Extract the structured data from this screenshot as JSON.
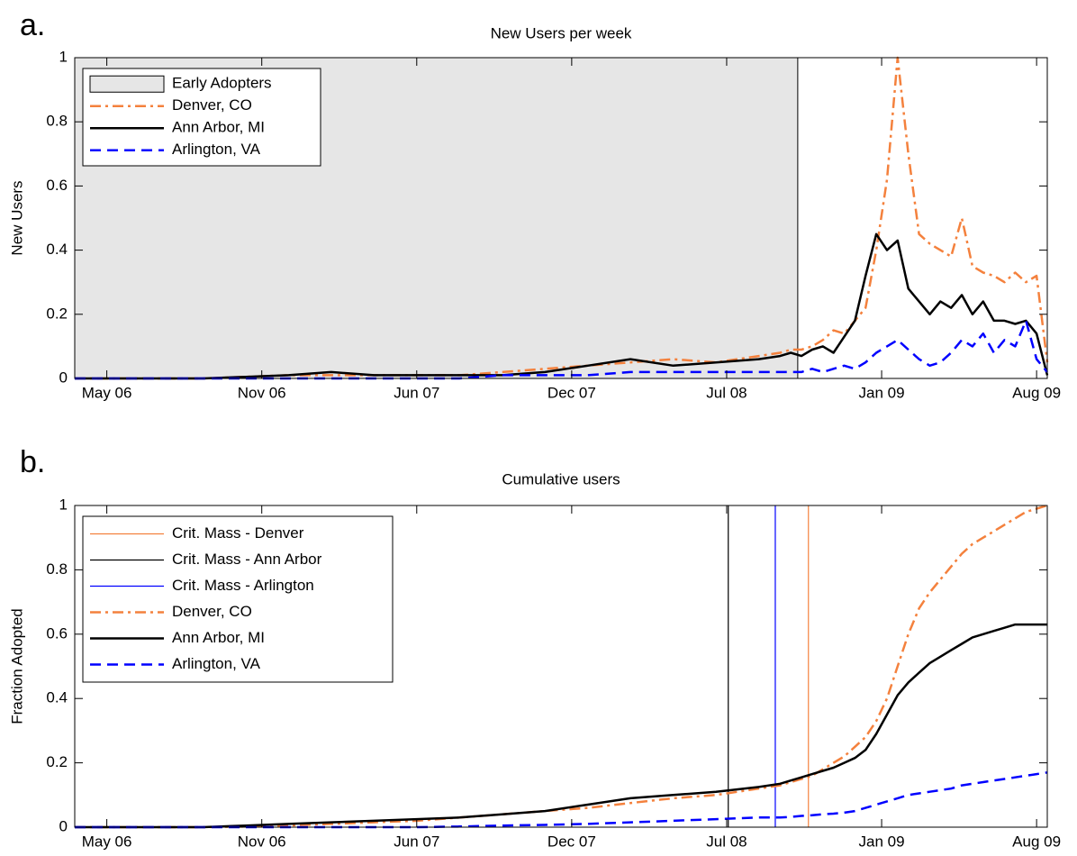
{
  "chart_data": [
    {
      "type": "line",
      "panel_label": "a.",
      "title": "New Users per week",
      "ylabel": "New Users",
      "xlim": [
        0,
        182
      ],
      "ylim": [
        0,
        1
      ],
      "xticks": [
        {
          "value": 6,
          "label": "May 06"
        },
        {
          "value": 35,
          "label": "Nov 06"
        },
        {
          "value": 64,
          "label": "Jun 07"
        },
        {
          "value": 93,
          "label": "Dec 07"
        },
        {
          "value": 122,
          "label": "Jul 08"
        },
        {
          "value": 151,
          "label": "Jan 09"
        },
        {
          "value": 180,
          "label": "Aug 09"
        }
      ],
      "yticks": [
        0,
        0.2,
        0.4,
        0.6,
        0.8,
        1
      ],
      "shaded": {
        "name": "Early Adopters",
        "color": "#e6e6e6",
        "x": [
          0,
          135.3
        ]
      },
      "x": [
        0,
        8,
        16,
        24,
        32,
        40,
        48,
        56,
        64,
        72,
        80,
        88,
        96,
        104,
        112,
        120,
        128,
        132,
        134,
        136,
        138,
        140,
        142,
        144,
        146,
        148,
        150,
        152,
        154,
        156,
        158,
        160,
        162,
        164,
        166,
        168,
        170,
        172,
        174,
        176,
        178,
        180,
        182
      ],
      "series": [
        {
          "name": "Denver, CO",
          "color": "#f4813d",
          "dash": "dash-dot",
          "values": [
            0,
            0,
            0,
            0,
            0.005,
            0.01,
            0.01,
            0.01,
            0.01,
            0.01,
            0.02,
            0.03,
            0.04,
            0.05,
            0.06,
            0.05,
            0.07,
            0.08,
            0.09,
            0.09,
            0.1,
            0.12,
            0.15,
            0.14,
            0.18,
            0.22,
            0.4,
            0.62,
            1.0,
            0.7,
            0.45,
            0.42,
            0.4,
            0.38,
            0.5,
            0.35,
            0.33,
            0.32,
            0.3,
            0.33,
            0.3,
            0.32,
            0.05
          ]
        },
        {
          "name": "Ann Arbor, MI",
          "color": "#000000",
          "dash": "solid",
          "values": [
            0,
            0,
            0,
            0,
            0.005,
            0.01,
            0.02,
            0.01,
            0.01,
            0.01,
            0.01,
            0.02,
            0.04,
            0.06,
            0.04,
            0.05,
            0.06,
            0.07,
            0.08,
            0.07,
            0.09,
            0.1,
            0.08,
            0.13,
            0.18,
            0.32,
            0.45,
            0.4,
            0.43,
            0.28,
            0.24,
            0.2,
            0.24,
            0.22,
            0.26,
            0.2,
            0.24,
            0.18,
            0.18,
            0.17,
            0.18,
            0.14,
            0.01
          ]
        },
        {
          "name": "Arlington, VA",
          "color": "#0000ff",
          "dash": "dashed",
          "values": [
            0,
            0,
            0,
            0,
            0,
            0,
            0,
            0,
            0,
            0,
            0.01,
            0.01,
            0.01,
            0.02,
            0.02,
            0.02,
            0.02,
            0.02,
            0.02,
            0.02,
            0.03,
            0.02,
            0.03,
            0.04,
            0.03,
            0.05,
            0.08,
            0.1,
            0.12,
            0.09,
            0.06,
            0.04,
            0.05,
            0.08,
            0.12,
            0.1,
            0.14,
            0.08,
            0.12,
            0.1,
            0.18,
            0.06,
            0.02
          ]
        }
      ]
    },
    {
      "type": "line",
      "panel_label": "b.",
      "title": "Cumulative users",
      "ylabel": "Fraction Adopted",
      "xlim": [
        0,
        182
      ],
      "ylim": [
        0,
        1
      ],
      "xticks": [
        {
          "value": 6,
          "label": "May 06"
        },
        {
          "value": 35,
          "label": "Nov 06"
        },
        {
          "value": 64,
          "label": "Jun 07"
        },
        {
          "value": 93,
          "label": "Dec 07"
        },
        {
          "value": 122,
          "label": "Jul 08"
        },
        {
          "value": 151,
          "label": "Jan 09"
        },
        {
          "value": 180,
          "label": "Aug 09"
        }
      ],
      "yticks": [
        0,
        0.2,
        0.4,
        0.6,
        0.8,
        1
      ],
      "vlines": [
        {
          "name": "Crit. Mass - Denver",
          "color": "#f4813d",
          "x": 137.3
        },
        {
          "name": "Crit. Mass - Ann Arbor",
          "color": "#000000",
          "x": 122.3
        },
        {
          "name": "Crit. Mass - Arlington",
          "color": "#0000ff",
          "x": 131.1
        }
      ],
      "x": [
        0,
        8,
        16,
        24,
        32,
        40,
        48,
        56,
        64,
        72,
        80,
        88,
        96,
        104,
        112,
        120,
        128,
        132,
        134,
        136,
        138,
        140,
        142,
        144,
        146,
        148,
        150,
        152,
        154,
        156,
        158,
        160,
        162,
        164,
        166,
        168,
        170,
        172,
        174,
        176,
        178,
        180,
        182
      ],
      "series": [
        {
          "name": "Denver, CO",
          "color": "#f4813d",
          "dash": "dash-dot",
          "values": [
            0,
            0,
            0,
            0,
            0.002,
            0.005,
            0.01,
            0.015,
            0.02,
            0.03,
            0.04,
            0.05,
            0.06,
            0.075,
            0.09,
            0.1,
            0.12,
            0.13,
            0.14,
            0.15,
            0.16,
            0.18,
            0.2,
            0.22,
            0.25,
            0.28,
            0.33,
            0.4,
            0.5,
            0.6,
            0.68,
            0.73,
            0.77,
            0.81,
            0.85,
            0.88,
            0.9,
            0.92,
            0.94,
            0.96,
            0.98,
            0.99,
            1.0
          ]
        },
        {
          "name": "Ann Arbor, MI",
          "color": "#000000",
          "dash": "solid",
          "values": [
            0,
            0,
            0,
            0,
            0.005,
            0.01,
            0.015,
            0.02,
            0.025,
            0.03,
            0.04,
            0.05,
            0.07,
            0.09,
            0.1,
            0.11,
            0.125,
            0.135,
            0.145,
            0.155,
            0.165,
            0.175,
            0.185,
            0.2,
            0.215,
            0.24,
            0.29,
            0.35,
            0.41,
            0.45,
            0.48,
            0.51,
            0.53,
            0.55,
            0.57,
            0.59,
            0.6,
            0.61,
            0.62,
            0.63,
            0.63,
            0.63,
            0.63
          ]
        },
        {
          "name": "Arlington, VA",
          "color": "#0000ff",
          "dash": "dashed",
          "values": [
            0,
            0,
            0,
            0,
            0,
            0,
            0,
            0,
            0,
            0.002,
            0.005,
            0.007,
            0.01,
            0.015,
            0.02,
            0.025,
            0.03,
            0.03,
            0.032,
            0.035,
            0.037,
            0.04,
            0.042,
            0.045,
            0.05,
            0.06,
            0.07,
            0.08,
            0.09,
            0.1,
            0.105,
            0.11,
            0.115,
            0.12,
            0.13,
            0.135,
            0.14,
            0.145,
            0.15,
            0.155,
            0.16,
            0.165,
            0.17
          ]
        }
      ]
    }
  ]
}
